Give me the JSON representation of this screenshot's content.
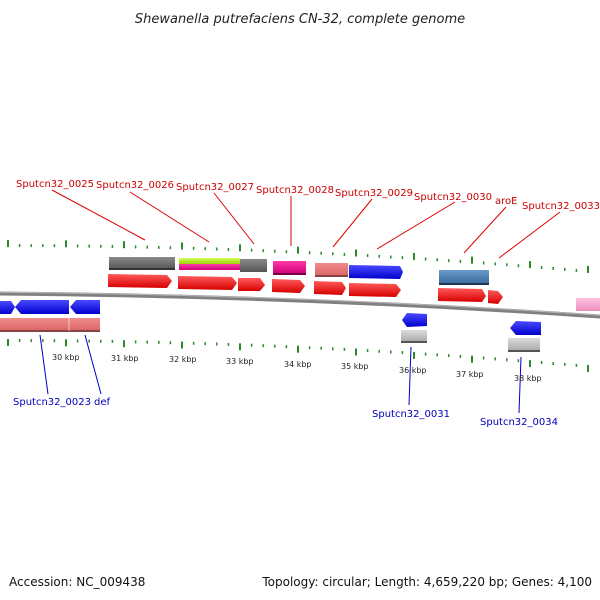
{
  "header": {
    "title": "Shewanella putrefaciens CN-32, complete genome"
  },
  "footer": {
    "accession": "Accession: NC_009438",
    "topology": "Topology: circular; Length: 4,659,220 bp; Genes: 4,100"
  },
  "colors": {
    "label_top": "#cc0000",
    "label_bottom": "#0000bb",
    "tick": "#2b8a2b",
    "backbone": "#808080"
  },
  "top_labels": [
    {
      "text": "Sputcn32_0025"
    },
    {
      "text": "Sputcn32_0026"
    },
    {
      "text": "Sputcn32_0027"
    },
    {
      "text": "Sputcn32_0028"
    },
    {
      "text": "Sputcn32_0029"
    },
    {
      "text": "Sputcn32_0030"
    },
    {
      "text": "aroE"
    },
    {
      "text": "Sputcn32_0033"
    }
  ],
  "bottom_labels": [
    {
      "text": "Sputcn32_0023"
    },
    {
      "text": "def"
    },
    {
      "text": "Sputcn32_0031"
    },
    {
      "text": "Sputcn32_0034"
    }
  ],
  "kbp_ticks": [
    "30 kbp",
    "31 kbp",
    "32 kbp",
    "33 kbp",
    "34 kbp",
    "35 kbp",
    "36 kbp",
    "37 kbp",
    "38 kbp"
  ]
}
